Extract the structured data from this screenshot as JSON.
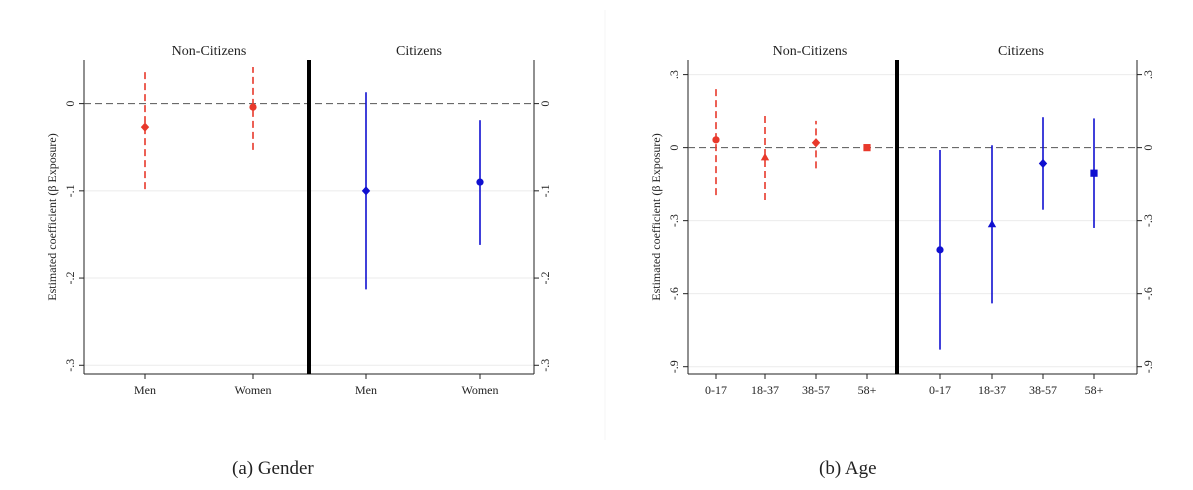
{
  "chart_data": [
    {
      "type": "scatter",
      "caption": "(a)  Gender",
      "ylabel": "Estimated coefficient (β Exposure)",
      "ylim": [
        -0.31,
        0.05
      ],
      "yticks": [
        0,
        -0.1,
        -0.2,
        -0.3
      ],
      "ytick_labels": [
        "0",
        "-.1",
        "-.2",
        "-.3"
      ],
      "grid": true,
      "reference_line": 0,
      "panels": [
        {
          "title": "Non-Citizens",
          "categories": [
            "Men",
            "Women"
          ],
          "color": "#e8392b",
          "line_style": "dashed",
          "points": [
            {
              "category": "Men",
              "estimate": -0.027,
              "ci_low": -0.098,
              "ci_high": 0.038,
              "marker": "diamond"
            },
            {
              "category": "Women",
              "estimate": -0.004,
              "ci_low": -0.053,
              "ci_high": 0.042,
              "marker": "circle"
            }
          ]
        },
        {
          "title": "Citizens",
          "categories": [
            "Men",
            "Women"
          ],
          "color": "#1010d0",
          "line_style": "solid",
          "points": [
            {
              "category": "Men",
              "estimate": -0.1,
              "ci_low": -0.213,
              "ci_high": 0.013,
              "marker": "diamond"
            },
            {
              "category": "Women",
              "estimate": -0.09,
              "ci_low": -0.162,
              "ci_high": -0.019,
              "marker": "circle"
            }
          ]
        }
      ]
    },
    {
      "type": "scatter",
      "caption": "(b)  Age",
      "ylabel": "Estimated coefficient (β Exposure)",
      "ylim": [
        -0.93,
        0.36
      ],
      "yticks": [
        0.3,
        0,
        -0.3,
        -0.6,
        -0.9
      ],
      "ytick_labels": [
        ".3",
        "0",
        "-.3",
        "-.6",
        "-.9"
      ],
      "grid": true,
      "reference_line": 0,
      "panels": [
        {
          "title": "Non-Citizens",
          "categories": [
            "0-17",
            "18-37",
            "38-57",
            "58+"
          ],
          "color": "#e8392b",
          "line_style": "dashed",
          "points": [
            {
              "category": "0-17",
              "estimate": 0.032,
              "ci_low": -0.195,
              "ci_high": 0.255,
              "marker": "circle"
            },
            {
              "category": "18-37",
              "estimate": -0.04,
              "ci_low": -0.215,
              "ci_high": 0.135,
              "marker": "triangle"
            },
            {
              "category": "38-57",
              "estimate": 0.02,
              "ci_low": -0.085,
              "ci_high": 0.11,
              "marker": "diamond"
            },
            {
              "category": "58+",
              "estimate": 0.0,
              "ci_low": -0.012,
              "ci_high": 0.012,
              "marker": "square"
            }
          ]
        },
        {
          "title": "Citizens",
          "categories": [
            "0-17",
            "18-37",
            "38-57",
            "58+"
          ],
          "color": "#1010d0",
          "line_style": "solid",
          "points": [
            {
              "category": "0-17",
              "estimate": -0.42,
              "ci_low": -0.83,
              "ci_high": -0.01,
              "marker": "circle"
            },
            {
              "category": "18-37",
              "estimate": -0.315,
              "ci_low": -0.64,
              "ci_high": 0.01,
              "marker": "triangle"
            },
            {
              "category": "38-57",
              "estimate": -0.065,
              "ci_low": -0.255,
              "ci_high": 0.125,
              "marker": "diamond"
            },
            {
              "category": "58+",
              "estimate": -0.105,
              "ci_low": -0.33,
              "ci_high": 0.12,
              "marker": "square"
            }
          ]
        }
      ]
    }
  ]
}
